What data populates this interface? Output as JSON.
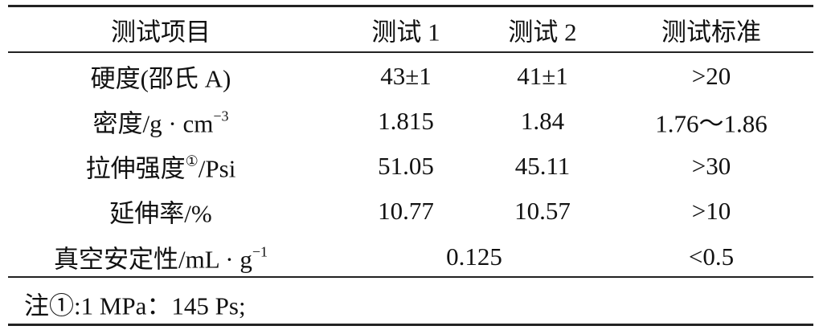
{
  "table": {
    "header": [
      "测试项目",
      "测试 1",
      "测试 2",
      "测试标准"
    ],
    "rows": [
      [
        "硬度(邵氏 A)",
        "43±1",
        "41±1",
        ">20"
      ],
      [
        {
          "text": "密度/g · cm",
          "sup": "−3"
        },
        "1.815",
        "1.84",
        "1.76～1.86"
      ],
      [
        {
          "text": "拉伸强度",
          "sup": "①",
          "after": "/Psi"
        },
        "51.05",
        "45.11",
        ">30"
      ],
      [
        "延伸率/%",
        "10.77",
        "10.57",
        ">10"
      ],
      [
        {
          "text": "真空安定性/mL · g",
          "sup": "−1"
        },
        "0.125",
        "<0.5"
      ]
    ],
    "note": "注①:1 MPa：145 Ps;"
  }
}
